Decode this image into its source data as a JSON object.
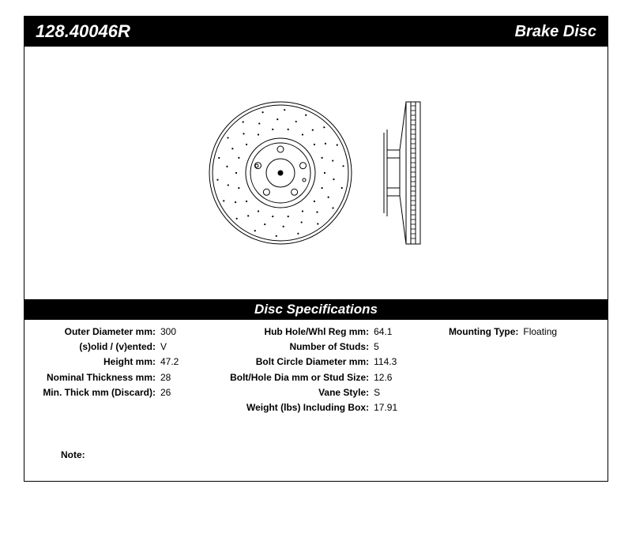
{
  "header": {
    "part_number": "128.40046R",
    "product_type": "Brake Disc"
  },
  "spec_header": "Disc Specifications",
  "specs": {
    "col1": [
      {
        "label": "Outer Diameter mm:",
        "value": "300"
      },
      {
        "label": "(s)olid / (v)ented:",
        "value": "V"
      },
      {
        "label": "Height mm:",
        "value": "47.2"
      },
      {
        "label": "Nominal Thickness mm:",
        "value": "28"
      },
      {
        "label": "Min. Thick mm (Discard):",
        "value": "26"
      }
    ],
    "col2": [
      {
        "label": "Hub Hole/Whl Reg mm:",
        "value": "64.1"
      },
      {
        "label": "Number of Studs:",
        "value": "5"
      },
      {
        "label": "Bolt Circle Diameter mm:",
        "value": "114.3"
      },
      {
        "label": "Bolt/Hole Dia mm or Stud Size:",
        "value": "12.6"
      },
      {
        "label": "Vane Style:",
        "value": "S"
      },
      {
        "label": "Weight (lbs) Including Box:",
        "value": "17.91"
      }
    ],
    "col3": [
      {
        "label": "Mounting Type:",
        "value": "Floating"
      }
    ]
  },
  "note_label": "Note:",
  "diagram": {
    "front": {
      "outer_radius": 90,
      "inner_ring_r1": 44,
      "inner_ring_r2": 38,
      "hub_radius": 18,
      "stud_count": 5,
      "stud_pcd_radius": 30,
      "stud_hole_radius": 4,
      "drilled_rings": [
        56,
        68,
        80
      ],
      "stroke": "#000"
    },
    "side": {
      "width": 44,
      "height": 180,
      "stroke": "#000"
    }
  }
}
